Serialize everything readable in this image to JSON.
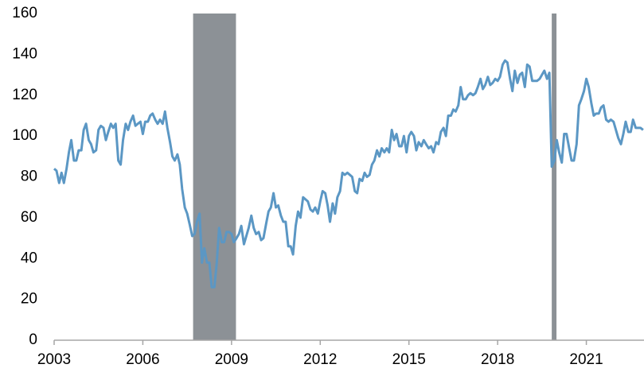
{
  "chart_data": {
    "type": "line",
    "x": [
      2003.0,
      2003.08,
      2003.17,
      2003.25,
      2003.33,
      2003.42,
      2003.5,
      2003.58,
      2003.67,
      2003.75,
      2003.83,
      2003.92,
      2004.0,
      2004.08,
      2004.17,
      2004.25,
      2004.33,
      2004.42,
      2004.5,
      2004.58,
      2004.67,
      2004.75,
      2004.83,
      2004.92,
      2005.0,
      2005.08,
      2005.17,
      2005.25,
      2005.33,
      2005.42,
      2005.5,
      2005.58,
      2005.67,
      2005.75,
      2005.83,
      2005.92,
      2006.0,
      2006.08,
      2006.17,
      2006.25,
      2006.33,
      2006.42,
      2006.5,
      2006.58,
      2006.67,
      2006.75,
      2006.83,
      2006.92,
      2007.0,
      2007.08,
      2007.17,
      2007.25,
      2007.33,
      2007.42,
      2007.5,
      2007.58,
      2007.67,
      2007.75,
      2007.83,
      2007.92,
      2008.0,
      2008.08,
      2008.17,
      2008.25,
      2008.33,
      2008.42,
      2008.5,
      2008.58,
      2008.67,
      2008.75,
      2008.83,
      2008.92,
      2009.0,
      2009.08,
      2009.17,
      2009.25,
      2009.33,
      2009.42,
      2009.5,
      2009.58,
      2009.67,
      2009.75,
      2009.83,
      2009.92,
      2010.0,
      2010.08,
      2010.17,
      2010.25,
      2010.33,
      2010.42,
      2010.5,
      2010.58,
      2010.67,
      2010.75,
      2010.83,
      2010.92,
      2011.0,
      2011.08,
      2011.17,
      2011.25,
      2011.33,
      2011.42,
      2011.5,
      2011.58,
      2011.67,
      2011.75,
      2011.83,
      2011.92,
      2012.0,
      2012.08,
      2012.17,
      2012.25,
      2012.33,
      2012.42,
      2012.5,
      2012.58,
      2012.67,
      2012.75,
      2012.83,
      2012.92,
      2013.0,
      2013.08,
      2013.17,
      2013.25,
      2013.33,
      2013.42,
      2013.5,
      2013.58,
      2013.67,
      2013.75,
      2013.83,
      2013.92,
      2014.0,
      2014.08,
      2014.17,
      2014.25,
      2014.33,
      2014.42,
      2014.5,
      2014.58,
      2014.67,
      2014.75,
      2014.83,
      2014.92,
      2015.0,
      2015.08,
      2015.17,
      2015.25,
      2015.33,
      2015.42,
      2015.5,
      2015.58,
      2015.67,
      2015.75,
      2015.83,
      2015.92,
      2016.0,
      2016.08,
      2016.17,
      2016.25,
      2016.33,
      2016.42,
      2016.5,
      2016.58,
      2016.67,
      2016.75,
      2016.83,
      2016.92,
      2017.0,
      2017.08,
      2017.17,
      2017.25,
      2017.33,
      2017.42,
      2017.5,
      2017.58,
      2017.67,
      2017.75,
      2017.83,
      2017.92,
      2018.0,
      2018.08,
      2018.17,
      2018.25,
      2018.33,
      2018.42,
      2018.5,
      2018.58,
      2018.67,
      2018.75,
      2018.83,
      2018.92,
      2019.0,
      2019.08,
      2019.17,
      2019.25,
      2019.33,
      2019.42,
      2019.5,
      2019.58,
      2019.67,
      2019.75,
      2019.83,
      2019.92,
      2020.0,
      2020.08,
      2020.17,
      2020.25,
      2020.33,
      2020.42,
      2020.5,
      2020.58,
      2020.67,
      2020.75,
      2020.83,
      2020.92,
      2021.0,
      2021.08,
      2021.17,
      2021.25,
      2021.33,
      2021.42,
      2021.5,
      2021.58,
      2021.67,
      2021.75,
      2021.83,
      2021.92,
      2022.0,
      2022.08,
      2022.17,
      2022.25,
      2022.33,
      2022.42,
      2022.5,
      2022.58,
      2022.67,
      2022.75,
      2022.83,
      2022.92
    ],
    "values": [
      84,
      83,
      77,
      82,
      77,
      84,
      92,
      98,
      88,
      88,
      93,
      93,
      103,
      106,
      98,
      96,
      92,
      93,
      103,
      105,
      104,
      98,
      102,
      106,
      104,
      106,
      88,
      86,
      98,
      106,
      103,
      107,
      110,
      105,
      106,
      107,
      101,
      107,
      107,
      110,
      111,
      108,
      106,
      108,
      106,
      112,
      104,
      97,
      90,
      88,
      91,
      86,
      74,
      65,
      62,
      57,
      51,
      52,
      58,
      62,
      38,
      45,
      38,
      38,
      26,
      26,
      38,
      55,
      48,
      48,
      53,
      53,
      52,
      48,
      50,
      52,
      56,
      47,
      51,
      55,
      61,
      55,
      52,
      53,
      49,
      50,
      57,
      63,
      65,
      72,
      65,
      66,
      61,
      58,
      58,
      46,
      46,
      42,
      56,
      63,
      60,
      70,
      69,
      68,
      64,
      63,
      65,
      62,
      68,
      73,
      72,
      66,
      58,
      67,
      62,
      70,
      73,
      82,
      81,
      82,
      81,
      80,
      73,
      72,
      79,
      78,
      82,
      80,
      81,
      86,
      88,
      93,
      90,
      94,
      92,
      94,
      92,
      103,
      98,
      101,
      95,
      95,
      100,
      92,
      100,
      102,
      100,
      93,
      97,
      95,
      98,
      96,
      94,
      95,
      92,
      97,
      96,
      102,
      104,
      100,
      110,
      110,
      113,
      112,
      115,
      124,
      118,
      118,
      120,
      121,
      120,
      121,
      124,
      128,
      123,
      125,
      129,
      125,
      126,
      128,
      127,
      129,
      135,
      137,
      136,
      128,
      122,
      132,
      126,
      130,
      131,
      124,
      135,
      134,
      127,
      127,
      127,
      128,
      130,
      132,
      128,
      131,
      85,
      88,
      98,
      92,
      87,
      101,
      101,
      94,
      88,
      88,
      96,
      115,
      118,
      122,
      128,
      124,
      116,
      110,
      111,
      111,
      114,
      115,
      108,
      107,
      108,
      107,
      103,
      99,
      96,
      101,
      107,
      102,
      102,
      108,
      104,
      104,
      104,
      103
    ],
    "color": "#5b97c4",
    "shaded_spans": [
      [
        2007.7,
        2009.15
      ],
      [
        2019.83,
        2019.99
      ]
    ],
    "shade_color": "#8c9196",
    "xlim": [
      2003,
      2022.95
    ],
    "xticks": [
      2003,
      2006,
      2009,
      2012,
      2015,
      2018,
      2021
    ],
    "ylim": [
      0,
      160
    ],
    "yticks": [
      0,
      20,
      40,
      60,
      80,
      100,
      120,
      140,
      160
    ]
  }
}
